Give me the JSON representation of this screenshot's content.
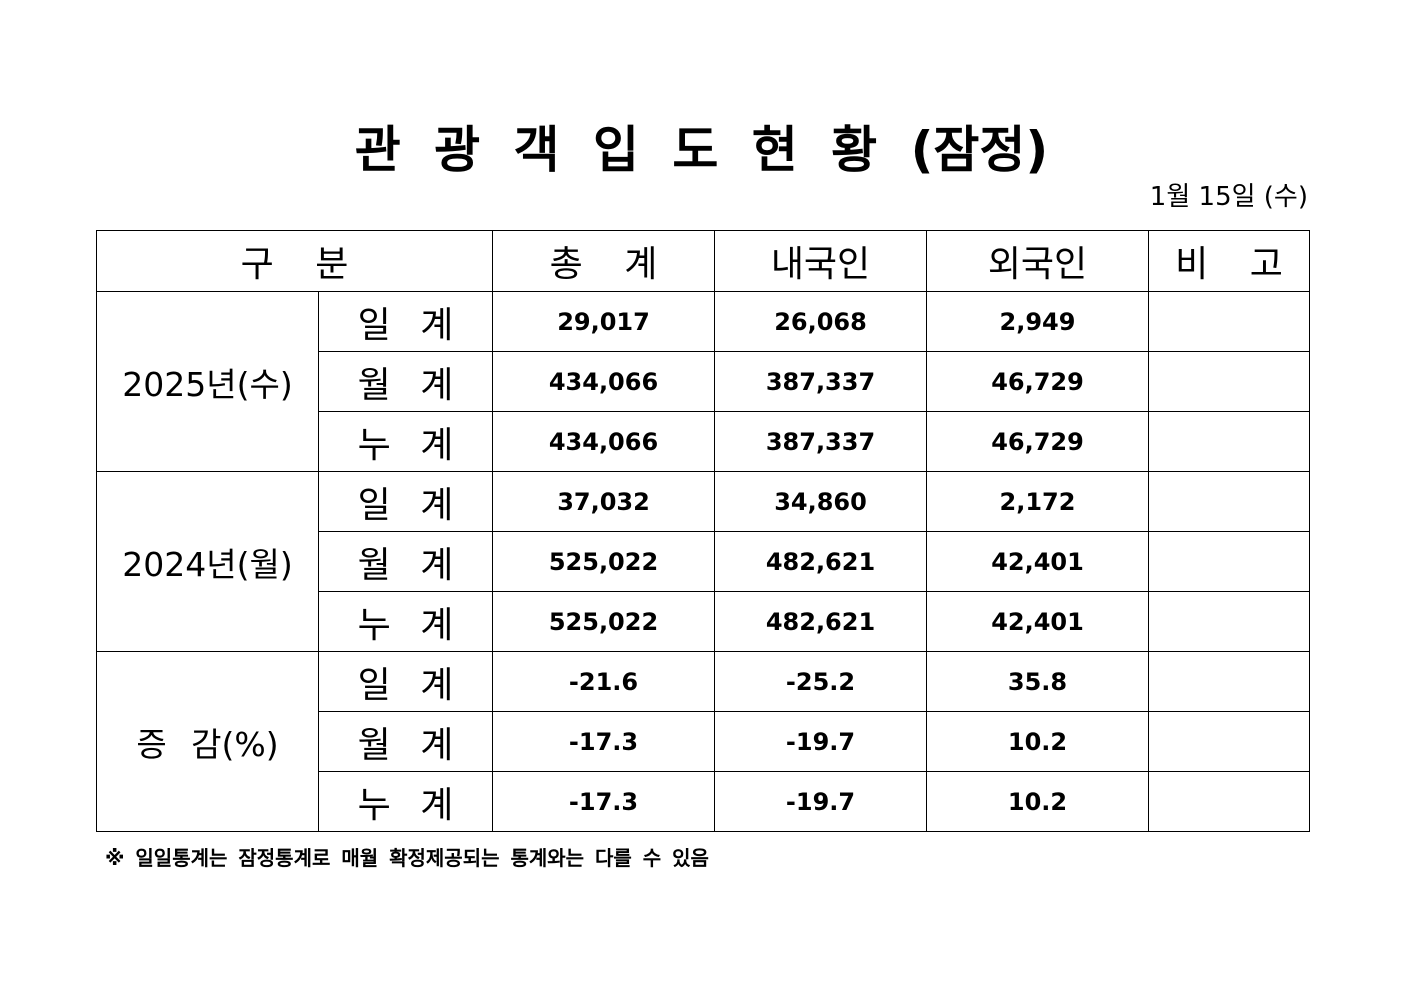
{
  "title": "관 광 객 입 도 현 황 (잠정)",
  "date": "1월 15일 (수)",
  "table": {
    "header": [
      "구 분",
      "총 계",
      "내국인",
      "외국인",
      "비 고"
    ],
    "groups": [
      {
        "label": "2025년(수)",
        "rows": [
          {
            "label": "일 계",
            "values": [
              "29,017",
              "26,068",
              "2,949"
            ]
          },
          {
            "label": "월 계",
            "values": [
              "434,066",
              "387,337",
              "46,729"
            ]
          },
          {
            "label": "누 계",
            "values": [
              "434,066",
              "387,337",
              "46,729"
            ]
          }
        ]
      },
      {
        "label": "2024년(월)",
        "rows": [
          {
            "label": "일 계",
            "values": [
              "37,032",
              "34,860",
              "2,172"
            ]
          },
          {
            "label": "월 계",
            "values": [
              "525,022",
              "482,621",
              "42,401"
            ]
          },
          {
            "label": "누 계",
            "values": [
              "525,022",
              "482,621",
              "42,401"
            ]
          }
        ]
      },
      {
        "label": "증 감(%)",
        "rows": [
          {
            "label": "일 계",
            "values": [
              "-21.6",
              "-25.2",
              "35.8"
            ]
          },
          {
            "label": "월 계",
            "values": [
              "-17.3",
              "-19.7",
              "10.2"
            ]
          },
          {
            "label": "누 계",
            "values": [
              "-17.3",
              "-19.7",
              "10.2"
            ]
          }
        ]
      }
    ]
  },
  "footnote": "※ 일일통계는 잠정통계로 매월 확정제공되는 통계와는 다를 수 있음"
}
